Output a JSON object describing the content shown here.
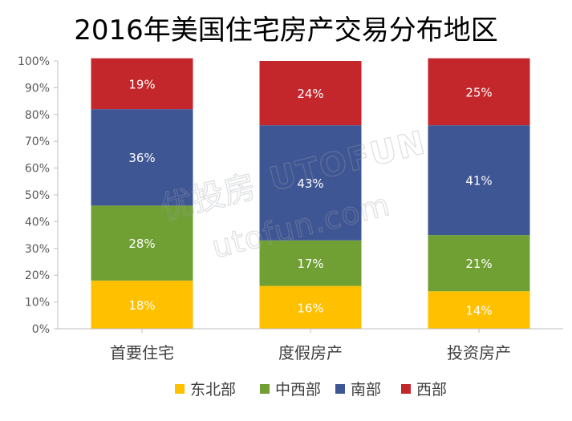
{
  "chart_data": {
    "type": "bar",
    "stacked": true,
    "title": "2016年美国住宅房产交易分布地区",
    "categories": [
      "首要住宅",
      "度假房产",
      "投资房产"
    ],
    "series": [
      {
        "name": "东北部",
        "color": "#FFC000",
        "values": [
          18,
          16,
          14
        ],
        "labels": [
          "18%",
          "16%",
          "14%"
        ]
      },
      {
        "name": "中西部",
        "color": "#70A034",
        "values": [
          28,
          17,
          21
        ],
        "labels": [
          "28%",
          "17%",
          "21%"
        ]
      },
      {
        "name": "南部",
        "color": "#3F5694",
        "values": [
          36,
          43,
          41
        ],
        "labels": [
          "36%",
          "43%",
          "41%"
        ]
      },
      {
        "name": "西部",
        "color": "#C3262B",
        "values": [
          19,
          24,
          25
        ],
        "labels": [
          "19%",
          "24%",
          "25%"
        ]
      }
    ],
    "ylim": [
      0,
      100
    ],
    "yticks": [
      "0%",
      "10%",
      "20%",
      "30%",
      "40%",
      "50%",
      "60%",
      "70%",
      "80%",
      "90%",
      "100%"
    ],
    "grid": false,
    "legend_position": "bottom"
  },
  "watermark": {
    "cn": "优投房",
    "en": "UTOFUN",
    "url": "utofun.com"
  }
}
